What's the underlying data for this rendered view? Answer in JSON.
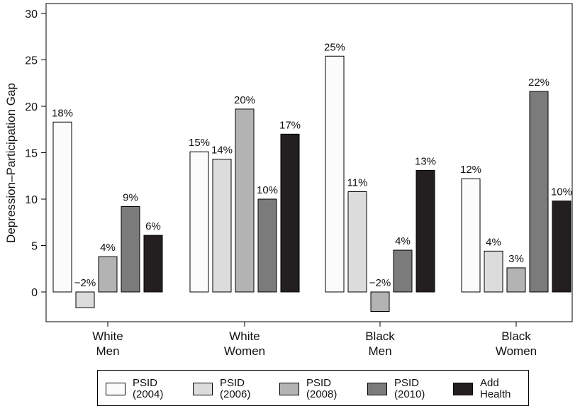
{
  "chart_data": {
    "type": "bar",
    "ylabel": "Depression–Participation Gap",
    "ylim": [
      -3,
      31
    ],
    "yticks": [
      0,
      5,
      10,
      15,
      20,
      25,
      30
    ],
    "grid": false,
    "legend_position": "bottom",
    "categories": [
      "White\nMen",
      "White\nWomen",
      "Black\nMen",
      "Black\nWomen"
    ],
    "series": [
      {
        "name": "PSID\n(2004)",
        "color": "#fbfbfb",
        "values": [
          18.3,
          15.1,
          25.4,
          12.2
        ],
        "labels": [
          "18%",
          "15%",
          "25%",
          "12%"
        ]
      },
      {
        "name": "PSID\n(2006)",
        "color": "#dcdcdc",
        "values": [
          -1.7,
          14.3,
          10.8,
          4.4
        ],
        "labels": [
          "−2%",
          "14%",
          "11%",
          "4%"
        ]
      },
      {
        "name": "PSID\n(2008)",
        "color": "#b3b3b3",
        "values": [
          3.8,
          19.7,
          -2.1,
          2.6
        ],
        "labels": [
          "4%",
          "20%",
          "−2%",
          "3%"
        ]
      },
      {
        "name": "PSID\n(2010)",
        "color": "#7b7b7b",
        "values": [
          9.2,
          10.0,
          4.5,
          21.6
        ],
        "labels": [
          "9%",
          "10%",
          "4%",
          "22%"
        ]
      },
      {
        "name": "Add\nHealth",
        "color": "#231f20",
        "values": [
          6.1,
          17.0,
          13.1,
          9.8
        ],
        "labels": [
          "6%",
          "17%",
          "13%",
          "10%"
        ]
      }
    ]
  }
}
